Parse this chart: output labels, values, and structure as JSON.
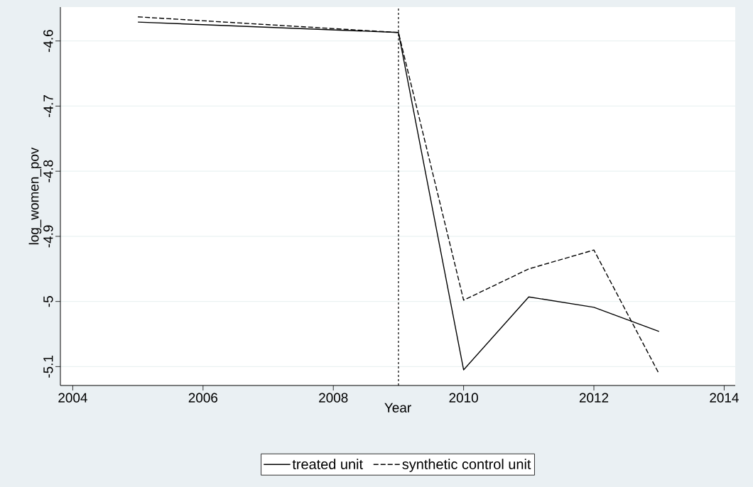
{
  "chart_data": {
    "type": "line",
    "xlabel": "Year",
    "ylabel": "log_women_pov",
    "x": [
      2005,
      2009,
      2010,
      2011,
      2012,
      2013
    ],
    "series": [
      {
        "name": "treated unit",
        "color": "#000000",
        "line_style": "solid",
        "values": [
          -4.571,
          -4.587,
          -5.105,
          -4.993,
          -5.009,
          -5.046
        ]
      },
      {
        "name": "synthetic control unit",
        "color": "#000000",
        "line_style": "dashed",
        "values": [
          -4.563,
          -4.587,
          -4.998,
          -4.95,
          -4.921,
          -5.111
        ]
      }
    ],
    "xlim": [
      2003.81,
      2014.17
    ],
    "ylim": [
      -5.129,
      -4.548
    ],
    "xticks": [
      2004,
      2006,
      2008,
      2010,
      2012,
      2014
    ],
    "yticks": [
      -5.1,
      -5,
      -4.9,
      -4.8,
      -4.7,
      -4.6
    ],
    "ref_lines": [
      {
        "axis": "x",
        "value": 2009,
        "color": "#000000",
        "line_style": "dotted"
      }
    ],
    "grid": "y",
    "legend": "bottom"
  }
}
